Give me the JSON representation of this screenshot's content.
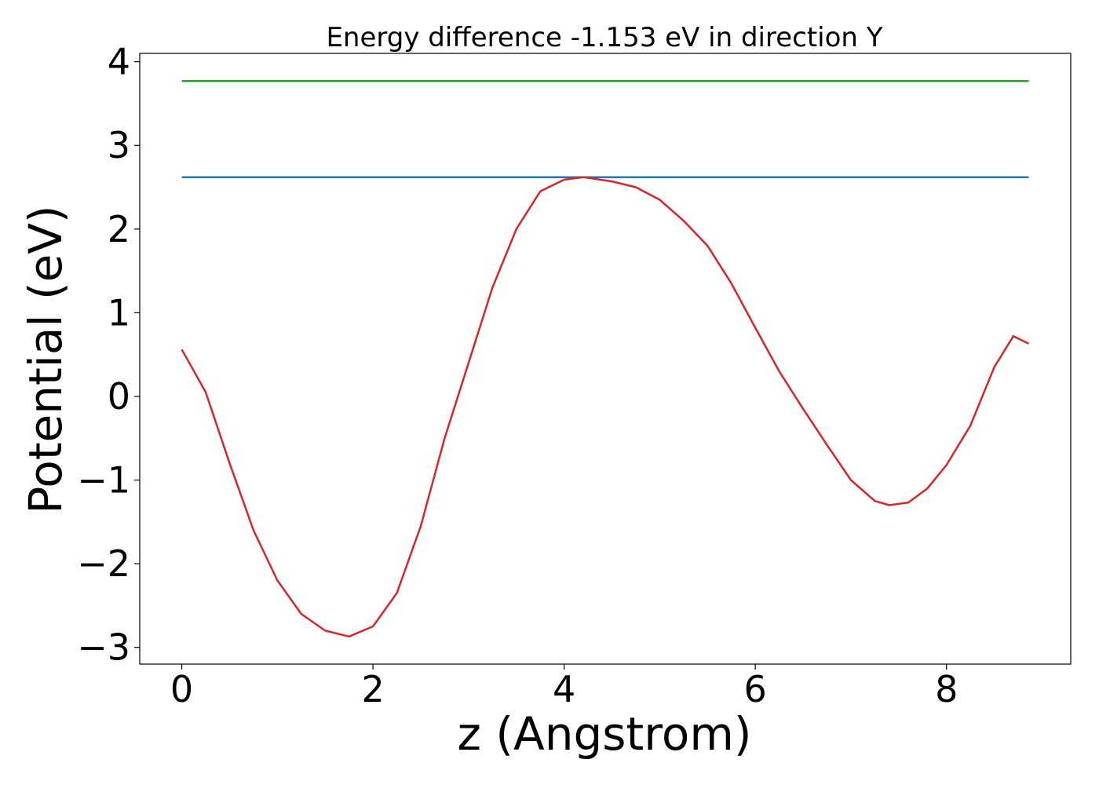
{
  "chart_data": {
    "type": "line",
    "title": "Energy difference -1.153 eV in direction Y",
    "xlabel": "z (Angstrom)",
    "ylabel": "Potential (eV)",
    "xlim": [
      -0.44,
      9.3
    ],
    "ylim": [
      -3.2,
      4.1
    ],
    "xticks": [
      0,
      2,
      4,
      6,
      8
    ],
    "yticks": [
      -3,
      -2,
      -1,
      0,
      1,
      2,
      3,
      4
    ],
    "xtick_labels": [
      "0",
      "2",
      "4",
      "6",
      "8"
    ],
    "ytick_labels": [
      "−3",
      "−2",
      "−1",
      "0",
      "1",
      "2",
      "3",
      "4"
    ],
    "grid": false,
    "series": [
      {
        "color": "#2ca02c",
        "x": [
          0,
          8.86
        ],
        "y": [
          3.77,
          3.77
        ]
      },
      {
        "color": "#1f77b4",
        "x": [
          0,
          8.86
        ],
        "y": [
          2.62,
          2.62
        ]
      },
      {
        "color": "#d62728",
        "x": [
          0,
          0.25,
          0.5,
          0.75,
          1.0,
          1.25,
          1.5,
          1.75,
          2.0,
          2.25,
          2.5,
          2.75,
          3.0,
          3.25,
          3.5,
          3.75,
          4.0,
          4.2,
          4.5,
          4.75,
          5.0,
          5.25,
          5.5,
          5.75,
          6.0,
          6.25,
          6.5,
          6.75,
          7.0,
          7.25,
          7.4,
          7.6,
          7.8,
          8.0,
          8.25,
          8.5,
          8.7,
          8.86
        ],
        "y": [
          0.56,
          0.05,
          -0.8,
          -1.6,
          -2.2,
          -2.6,
          -2.8,
          -2.87,
          -2.75,
          -2.35,
          -1.55,
          -0.5,
          0.4,
          1.3,
          2.0,
          2.45,
          2.59,
          2.62,
          2.57,
          2.5,
          2.35,
          2.1,
          1.8,
          1.35,
          0.82,
          0.3,
          -0.15,
          -0.58,
          -1.0,
          -1.25,
          -1.3,
          -1.27,
          -1.1,
          -0.82,
          -0.35,
          0.35,
          0.72,
          0.63
        ]
      }
    ]
  }
}
